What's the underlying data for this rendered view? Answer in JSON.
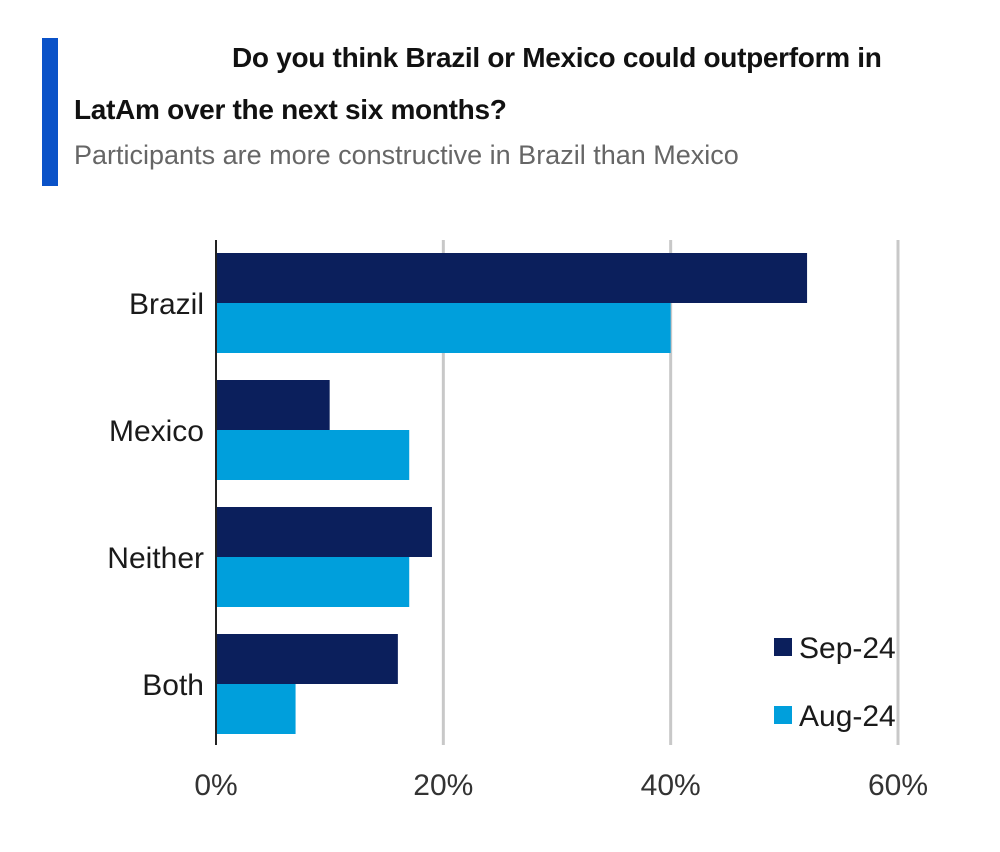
{
  "header": {
    "title_line_1": "Do you think Brazil or Mexico could outperform in",
    "title_line_2": "LatAm over the next six months?",
    "subtitle": "Participants are more constructive in Brazil than Mexico",
    "accent_color": "#0a52c8"
  },
  "chart_data": {
    "type": "bar",
    "orientation": "horizontal",
    "title": "Do you think Brazil or Mexico could outperform in LatAm over the next six months?",
    "subtitle": "Participants are more constructive in Brazil than Mexico",
    "categories": [
      "Brazil",
      "Mexico",
      "Neither",
      "Both"
    ],
    "series": [
      {
        "name": "Sep-24",
        "color": "#0b1f5c",
        "values": [
          52,
          10,
          19,
          16
        ]
      },
      {
        "name": "Aug-24",
        "color": "#009fdc",
        "values": [
          40,
          17,
          17,
          7
        ]
      }
    ],
    "xlim": [
      0,
      60
    ],
    "xticks": [
      0,
      20,
      40,
      60
    ],
    "xtick_labels": [
      "0%",
      "20%",
      "40%",
      "60%"
    ],
    "unit": "%",
    "grid": "vertical",
    "grid_color": "#c8c8c8",
    "legend_position": "bottom-right",
    "xlabel": "",
    "ylabel": ""
  }
}
